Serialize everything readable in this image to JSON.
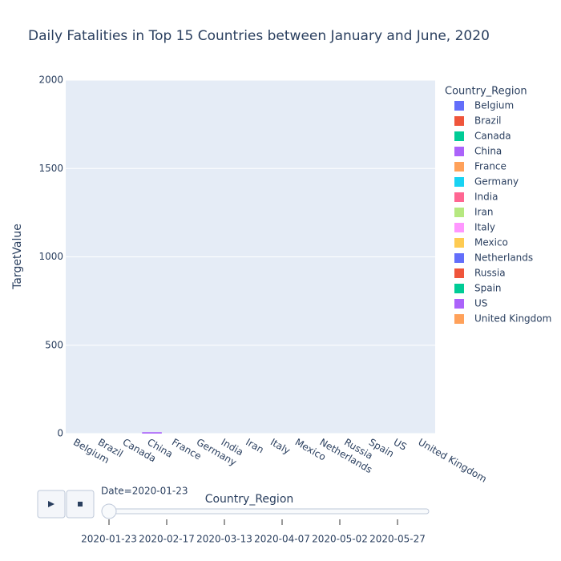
{
  "chart_data": {
    "type": "bar",
    "title": "Daily Fatalities in Top 15 Countries between January and June, 2020",
    "categories": [
      "Belgium",
      "Brazil",
      "Canada",
      "China",
      "France",
      "Germany",
      "India",
      "Iran",
      "Italy",
      "Mexico",
      "Netherlands",
      "Russia",
      "Spain",
      "US",
      "United Kingdom"
    ],
    "values": [
      0,
      0,
      0,
      8,
      0,
      0,
      0,
      0,
      0,
      0,
      0,
      0,
      0,
      0,
      0
    ],
    "colors": [
      "#636efa",
      "#EF553B",
      "#00cc96",
      "#ab63fa",
      "#FFA15A",
      "#19d3f3",
      "#FF6692",
      "#B6E880",
      "#FF97FF",
      "#FECB52",
      "#636efa",
      "#EF553B",
      "#00cc96",
      "#ab63fa",
      "#FFA15A"
    ],
    "legend_title": "Country_Region",
    "ylabel": "TargetValue",
    "xlabel": "Country_Region",
    "ylim": [
      0,
      2000
    ],
    "yticks": [
      0,
      500,
      1000,
      1500,
      2000
    ],
    "grid": true,
    "slider_current": "Date=2020-01-23",
    "slider_ticks": [
      "2020-01-23",
      "2020-02-17",
      "2020-03-13",
      "2020-04-07",
      "2020-05-02",
      "2020-05-27"
    ]
  }
}
